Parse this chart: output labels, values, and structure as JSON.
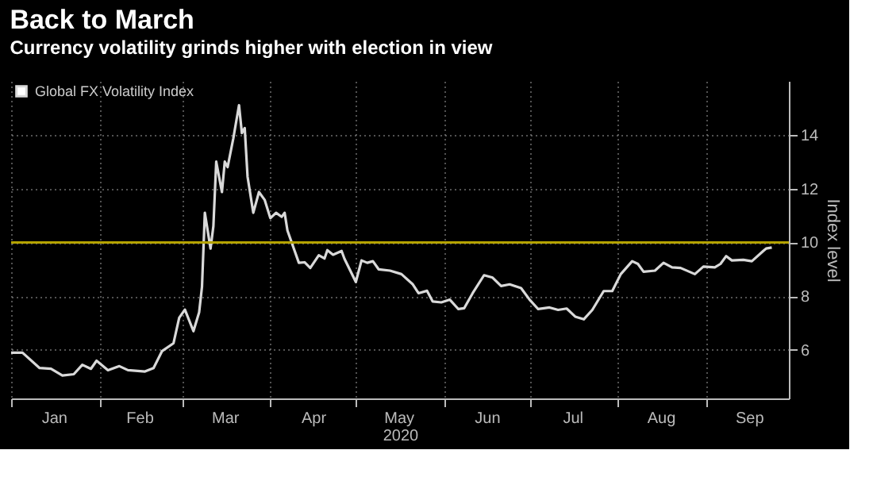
{
  "chart_data": {
    "type": "line",
    "title": "Back to March",
    "subtitle": "Currency volatility grinds higher with election in view",
    "xlabel": "2020",
    "ylabel": "Index level",
    "x": [
      "2020-01-01",
      "2020-01-05",
      "2020-01-11",
      "2020-01-15",
      "2020-01-19",
      "2020-01-23",
      "2020-01-26",
      "2020-01-29",
      "2020-01-31",
      "2020-02-04",
      "2020-02-08",
      "2020-02-11",
      "2020-02-17",
      "2020-02-20",
      "2020-02-23",
      "2020-02-27",
      "2020-02-29",
      "2020-03-02",
      "2020-03-05",
      "2020-03-07",
      "2020-03-08",
      "2020-03-09",
      "2020-03-11",
      "2020-03-12",
      "2020-03-13",
      "2020-03-15",
      "2020-03-16",
      "2020-03-17",
      "2020-03-19",
      "2020-03-21",
      "2020-03-22",
      "2020-03-23",
      "2020-03-24",
      "2020-03-26",
      "2020-03-28",
      "2020-03-30",
      "2020-04-01",
      "2020-04-03",
      "2020-04-05",
      "2020-04-06",
      "2020-04-07",
      "2020-04-11",
      "2020-04-13",
      "2020-04-15",
      "2020-04-18",
      "2020-04-20",
      "2020-04-21",
      "2020-04-23",
      "2020-04-26",
      "2020-04-27",
      "2020-05-01",
      "2020-05-03",
      "2020-05-05",
      "2020-05-07",
      "2020-05-09",
      "2020-05-13",
      "2020-05-17",
      "2020-05-21",
      "2020-05-23",
      "2020-05-26",
      "2020-05-28",
      "2020-05-31",
      "2020-06-03",
      "2020-06-06",
      "2020-06-08",
      "2020-06-11",
      "2020-06-15",
      "2020-06-18",
      "2020-06-21",
      "2020-06-24",
      "2020-06-28",
      "2020-07-01",
      "2020-07-04",
      "2020-07-08",
      "2020-07-11",
      "2020-07-14",
      "2020-07-17",
      "2020-07-20",
      "2020-07-23",
      "2020-07-27",
      "2020-07-30",
      "2020-08-02",
      "2020-08-06",
      "2020-08-08",
      "2020-08-10",
      "2020-08-14",
      "2020-08-17",
      "2020-08-20",
      "2020-08-23",
      "2020-08-28",
      "2020-08-31",
      "2020-09-04",
      "2020-09-06",
      "2020-09-08",
      "2020-09-10",
      "2020-09-14",
      "2020-09-17",
      "2020-09-21",
      "2020-09-22",
      "2020-09-24"
    ],
    "series": [
      {
        "name": "Global FX Volatility Index",
        "color": "#d9d9d9",
        "values": [
          5.9,
          5.9,
          5.33,
          5.3,
          5.05,
          5.1,
          5.45,
          5.3,
          5.6,
          5.25,
          5.4,
          5.25,
          5.2,
          5.33,
          5.96,
          6.25,
          7.2,
          7.5,
          6.7,
          7.4,
          8.35,
          11.1,
          9.77,
          10.6,
          13.0,
          11.87,
          13.0,
          12.8,
          13.87,
          15.1,
          14.06,
          14.25,
          12.44,
          11.1,
          11.87,
          11.58,
          10.9,
          11.1,
          10.95,
          11.1,
          10.44,
          9.24,
          9.26,
          9.05,
          9.52,
          9.4,
          9.71,
          9.54,
          9.68,
          9.39,
          8.53,
          9.33,
          9.24,
          9.3,
          9.0,
          8.95,
          8.82,
          8.44,
          8.11,
          8.2,
          7.8,
          7.77,
          7.87,
          7.52,
          7.55,
          8.11,
          8.78,
          8.69,
          8.38,
          8.44,
          8.3,
          7.87,
          7.52,
          7.58,
          7.49,
          7.54,
          7.24,
          7.14,
          7.49,
          8.19,
          8.19,
          8.82,
          9.3,
          9.2,
          8.91,
          8.95,
          9.24,
          9.07,
          9.05,
          8.82,
          9.1,
          9.07,
          9.2,
          9.49,
          9.33,
          9.35,
          9.3,
          9.68,
          9.77,
          9.81
        ]
      }
    ],
    "xlim": [
      "2020-01-01",
      "2020-09-30"
    ],
    "xticks": [
      {
        "value": "2020-01-01",
        "label": null
      },
      {
        "value": "2020-01-16",
        "label": "Jan"
      },
      {
        "value": "2020-02-01",
        "label": null
      },
      {
        "value": "2020-02-15",
        "label": "Feb"
      },
      {
        "value": "2020-03-01",
        "label": null
      },
      {
        "value": "2020-03-16",
        "label": "Mar"
      },
      {
        "value": "2020-04-01",
        "label": null
      },
      {
        "value": "2020-04-16",
        "label": "Apr"
      },
      {
        "value": "2020-05-01",
        "label": null
      },
      {
        "value": "2020-05-16",
        "label": "May"
      },
      {
        "value": "2020-06-01",
        "label": null
      },
      {
        "value": "2020-06-16",
        "label": "Jun"
      },
      {
        "value": "2020-07-01",
        "label": null
      },
      {
        "value": "2020-07-16",
        "label": "Jul"
      },
      {
        "value": "2020-08-01",
        "label": null
      },
      {
        "value": "2020-08-16",
        "label": "Aug"
      },
      {
        "value": "2020-09-01",
        "label": null
      },
      {
        "value": "2020-09-16",
        "label": "Sep"
      }
    ],
    "ylim": [
      4.2,
      16
    ],
    "yticks": [
      6,
      8,
      10,
      12,
      14
    ],
    "ref_lines": [
      {
        "axis": "y",
        "value": 10,
        "color": "#b5a300"
      }
    ],
    "grid": true,
    "legend": "top left",
    "line_style": "solid"
  }
}
